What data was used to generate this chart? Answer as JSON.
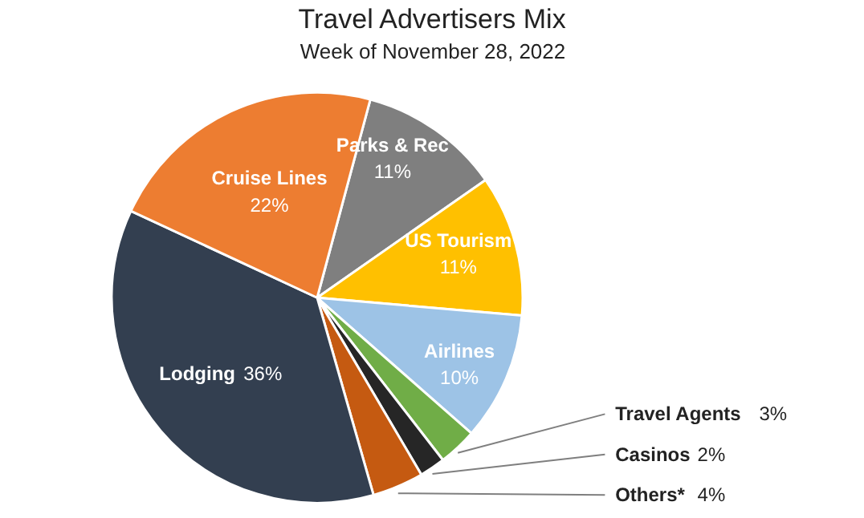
{
  "chart_data": {
    "type": "pie",
    "title": "Travel Advertisers Mix",
    "subtitle": "Week of November 28, 2022",
    "categories": [
      "Parks & Rec",
      "US Tourism",
      "Airlines",
      "Travel Agents",
      "Casinos",
      "Others*",
      "Lodging",
      "Cruise Lines"
    ],
    "values": [
      11,
      11,
      10,
      3,
      2,
      4,
      36,
      22
    ],
    "value_labels": [
      "11%",
      "11%",
      "10%",
      "3%",
      "2%",
      "4%",
      "36%",
      "22%"
    ],
    "colors": [
      "#7f7f7f",
      "#ffc000",
      "#9dc3e6",
      "#70ad47",
      "#262626",
      "#c55a11",
      "#333f50",
      "#ed7d31"
    ]
  }
}
